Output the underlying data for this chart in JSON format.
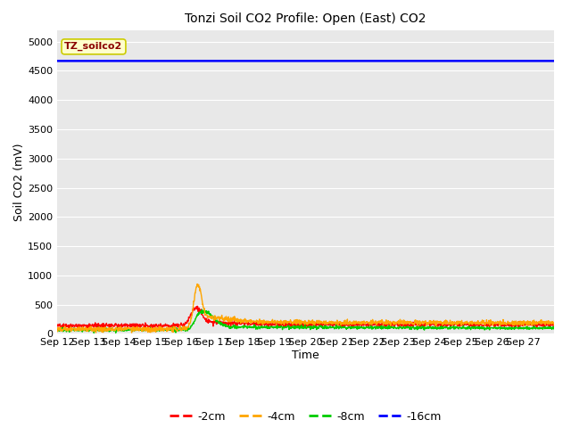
{
  "title": "Tonzi Soil CO2 Profile: Open (East) CO2",
  "xlabel": "Time",
  "ylabel": "Soil CO2 (mV)",
  "ylim": [
    0,
    5200
  ],
  "yticks": [
    0,
    500,
    1000,
    1500,
    2000,
    2500,
    3000,
    3500,
    4000,
    4500,
    5000
  ],
  "bg_color": "#e8e8e8",
  "fig_color": "#ffffff",
  "series": {
    "-2cm": {
      "color": "#ff0000",
      "linewidth": 1.0
    },
    "-4cm": {
      "color": "#ffa500",
      "linewidth": 1.0
    },
    "-8cm": {
      "color": "#00cc00",
      "linewidth": 1.0
    },
    "-16cm": {
      "color": "#0000ff",
      "linewidth": 1.8
    }
  },
  "legend_box_facecolor": "#ffffcc",
  "legend_box_edgecolor": "#cccc00",
  "legend_box_text": "TZ_soilco2",
  "legend_box_textcolor": "#8b0000",
  "num_days": 16,
  "x_labels": [
    "Sep 12",
    "Sep 13",
    "Sep 14",
    "Sep 15",
    "Sep 16",
    "Sep 17",
    "Sep 18",
    "Sep 19",
    "Sep 20",
    "Sep 21",
    "Sep 22",
    "Sep 23",
    "Sep 24",
    "Sep 25",
    "Sep 26",
    "Sep 27"
  ],
  "blue_line_value": 4670,
  "peak_day": 4.55,
  "peak_orange": 950,
  "peak_red": 490,
  "peak_green": 420,
  "base_red": 140,
  "base_orange": 80,
  "base_green": 70
}
